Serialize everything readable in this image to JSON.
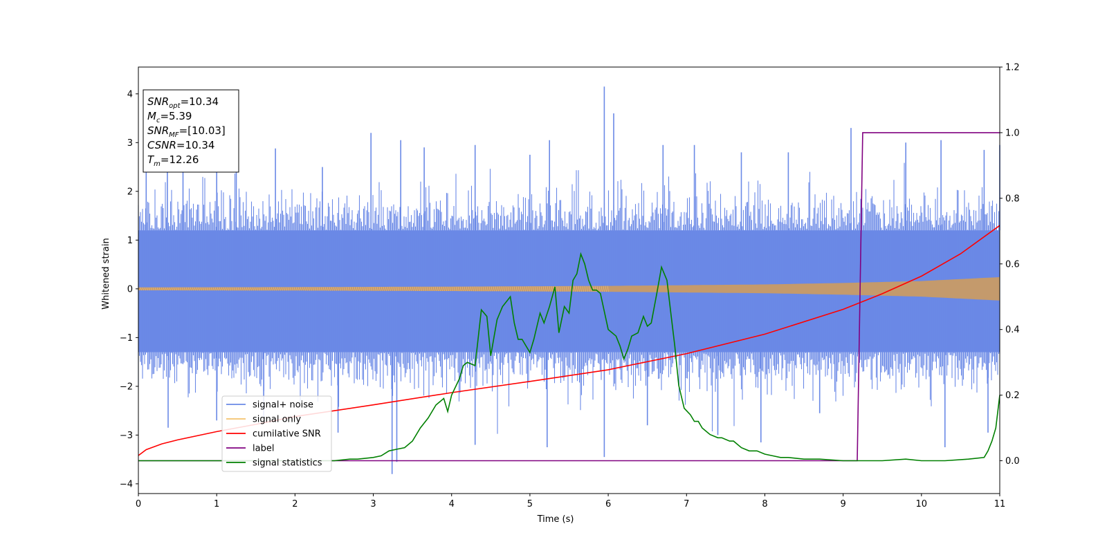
{
  "chart_data": {
    "type": "line",
    "title": "",
    "xlabel": "Time (s)",
    "ylabel": "Whitened strain",
    "xlim": [
      0,
      11
    ],
    "ylim": [
      -4.2,
      4.55
    ],
    "y2lim": [
      -0.1,
      1.2
    ],
    "grid": false,
    "x_ticks": [
      0,
      1,
      2,
      3,
      4,
      5,
      6,
      7,
      8,
      9,
      10,
      11
    ],
    "y_ticks": [
      -4,
      -3,
      -2,
      -1,
      0,
      1,
      2,
      3,
      4
    ],
    "y_tick_labels": [
      "−4",
      "−3",
      "−2",
      "−1",
      "0",
      "1",
      "2",
      "3",
      "4"
    ],
    "y2_ticks": [
      0.0,
      0.2,
      0.4,
      0.6,
      0.8,
      1.0,
      1.2
    ],
    "y2_tick_labels": [
      "0.0",
      "0.2",
      "0.4",
      "0.6",
      "0.8",
      "1.0",
      "1.2"
    ],
    "legend_position": "lower-left",
    "legend": [
      {
        "label": "signal+ noise",
        "color": "#6a89e6"
      },
      {
        "label": "signal only",
        "color": "#f5c36b"
      },
      {
        "label": "cumilative SNR",
        "color": "#ff0000"
      },
      {
        "label": "label",
        "color": "#800080"
      },
      {
        "label": "signal statistics",
        "color": "#008000"
      }
    ],
    "annotation": {
      "position": "top-left",
      "lines": [
        {
          "sym": "SNR",
          "sub": "opt",
          "rest": "=10.34"
        },
        {
          "sym": "M",
          "sub": "c",
          "rest": "=5.39"
        },
        {
          "sym": "SNR",
          "sub": "MF",
          "rest": "=[10.03]"
        },
        {
          "sym": "CSNR",
          "sub": "",
          "rest": "=10.34"
        },
        {
          "sym": "T",
          "sub": "m",
          "rest": "=12.26"
        }
      ]
    },
    "series": [
      {
        "name": "signal+ noise",
        "axis": "left",
        "color": "#6a89e6",
        "kind": "noise",
        "band_upper": 1.2,
        "band_lower": -1.3,
        "peaks": [
          {
            "x": 0.1,
            "y": 2.55
          },
          {
            "x": 0.37,
            "y": 2.75
          },
          {
            "x": 0.57,
            "y": 2.62
          },
          {
            "x": 1.0,
            "y": 2.45
          },
          {
            "x": 1.25,
            "y": 2.9
          },
          {
            "x": 1.75,
            "y": 2.88
          },
          {
            "x": 2.35,
            "y": 2.5
          },
          {
            "x": 2.97,
            "y": 3.2
          },
          {
            "x": 3.35,
            "y": 3.05
          },
          {
            "x": 3.65,
            "y": 2.9
          },
          {
            "x": 4.3,
            "y": 2.95
          },
          {
            "x": 5.0,
            "y": 2.75
          },
          {
            "x": 5.25,
            "y": 3.05
          },
          {
            "x": 5.95,
            "y": 4.15
          },
          {
            "x": 6.07,
            "y": 3.6
          },
          {
            "x": 6.7,
            "y": 2.95
          },
          {
            "x": 7.1,
            "y": 2.95
          },
          {
            "x": 7.7,
            "y": 2.8
          },
          {
            "x": 8.3,
            "y": 2.8
          },
          {
            "x": 9.1,
            "y": 3.3
          },
          {
            "x": 9.8,
            "y": 3.0
          },
          {
            "x": 10.25,
            "y": 3.05
          },
          {
            "x": 10.8,
            "y": 2.85
          },
          {
            "x": 11.0,
            "y": 2.95
          }
        ],
        "troughs": [
          {
            "x": 0.38,
            "y": -2.85
          },
          {
            "x": 1.0,
            "y": -2.7
          },
          {
            "x": 1.6,
            "y": -2.65
          },
          {
            "x": 2.55,
            "y": -2.95
          },
          {
            "x": 3.24,
            "y": -3.8
          },
          {
            "x": 3.3,
            "y": -3.55
          },
          {
            "x": 4.3,
            "y": -3.2
          },
          {
            "x": 5.22,
            "y": -3.25
          },
          {
            "x": 5.95,
            "y": -3.45
          },
          {
            "x": 6.5,
            "y": -2.8
          },
          {
            "x": 7.4,
            "y": -3.0
          },
          {
            "x": 7.95,
            "y": -3.15
          },
          {
            "x": 8.7,
            "y": -2.55
          },
          {
            "x": 10.3,
            "y": -3.25
          },
          {
            "x": 10.85,
            "y": -2.95
          }
        ]
      },
      {
        "name": "signal only",
        "axis": "left",
        "color": "#f5c36b",
        "kind": "chirp",
        "envelope": {
          "x": [
            0,
            2,
            4,
            6,
            8,
            9,
            10,
            11
          ],
          "y": [
            0.03,
            0.035,
            0.045,
            0.06,
            0.09,
            0.12,
            0.16,
            0.24
          ]
        }
      },
      {
        "name": "cumilative SNR",
        "axis": "left",
        "color": "#ff0000",
        "x": [
          0.0,
          0.1,
          0.3,
          0.5,
          1.0,
          1.5,
          2.0,
          3.0,
          4.0,
          5.0,
          6.0,
          7.0,
          8.0,
          9.0,
          9.5,
          10.0,
          10.5,
          11.0
        ],
        "y": [
          -3.42,
          -3.3,
          -3.18,
          -3.1,
          -2.93,
          -2.78,
          -2.62,
          -2.38,
          -2.13,
          -1.9,
          -1.66,
          -1.33,
          -0.93,
          -0.42,
          -0.1,
          0.26,
          0.72,
          1.3
        ]
      },
      {
        "name": "label",
        "axis": "right",
        "color": "#800080",
        "x": [
          0.0,
          9.18,
          9.25,
          11.0
        ],
        "y": [
          0.0,
          0.0,
          1.0,
          1.0
        ]
      },
      {
        "name": "signal statistics",
        "axis": "right",
        "color": "#008000",
        "x": [
          0.0,
          0.5,
          1.0,
          1.5,
          2.0,
          2.5,
          2.7,
          2.8,
          3.0,
          3.1,
          3.2,
          3.3,
          3.4,
          3.5,
          3.6,
          3.7,
          3.8,
          3.9,
          3.95,
          4.0,
          4.1,
          4.15,
          4.2,
          4.3,
          4.38,
          4.45,
          4.5,
          4.58,
          4.65,
          4.75,
          4.8,
          4.85,
          4.9,
          5.0,
          5.05,
          5.13,
          5.18,
          5.25,
          5.32,
          5.37,
          5.44,
          5.5,
          5.55,
          5.6,
          5.65,
          5.7,
          5.75,
          5.8,
          5.85,
          5.9,
          6.0,
          6.05,
          6.1,
          6.15,
          6.2,
          6.25,
          6.3,
          6.38,
          6.45,
          6.5,
          6.55,
          6.62,
          6.68,
          6.75,
          6.8,
          6.85,
          6.9,
          6.97,
          7.05,
          7.1,
          7.15,
          7.2,
          7.3,
          7.4,
          7.45,
          7.55,
          7.6,
          7.7,
          7.8,
          7.9,
          8.0,
          8.1,
          8.2,
          8.3,
          8.5,
          8.7,
          9.0,
          9.2,
          9.5,
          9.8,
          10.0,
          10.3,
          10.6,
          10.8,
          10.85,
          10.9,
          10.95,
          11.0
        ],
        "y": [
          0.0,
          0.0,
          0.0,
          0.0,
          0.0,
          0.0,
          0.005,
          0.005,
          0.01,
          0.015,
          0.03,
          0.035,
          0.04,
          0.06,
          0.1,
          0.13,
          0.17,
          0.19,
          0.15,
          0.2,
          0.25,
          0.29,
          0.3,
          0.29,
          0.46,
          0.44,
          0.32,
          0.43,
          0.47,
          0.5,
          0.42,
          0.37,
          0.37,
          0.33,
          0.37,
          0.45,
          0.42,
          0.47,
          0.53,
          0.39,
          0.47,
          0.45,
          0.55,
          0.57,
          0.63,
          0.6,
          0.55,
          0.52,
          0.52,
          0.51,
          0.4,
          0.39,
          0.38,
          0.35,
          0.31,
          0.34,
          0.38,
          0.39,
          0.44,
          0.41,
          0.42,
          0.51,
          0.59,
          0.55,
          0.45,
          0.35,
          0.23,
          0.16,
          0.14,
          0.12,
          0.12,
          0.1,
          0.08,
          0.07,
          0.07,
          0.06,
          0.06,
          0.04,
          0.03,
          0.03,
          0.02,
          0.015,
          0.01,
          0.01,
          0.005,
          0.005,
          0.0,
          0.0,
          0.0,
          0.005,
          0.0,
          0.0,
          0.005,
          0.01,
          0.03,
          0.06,
          0.1,
          0.2
        ]
      }
    ]
  }
}
